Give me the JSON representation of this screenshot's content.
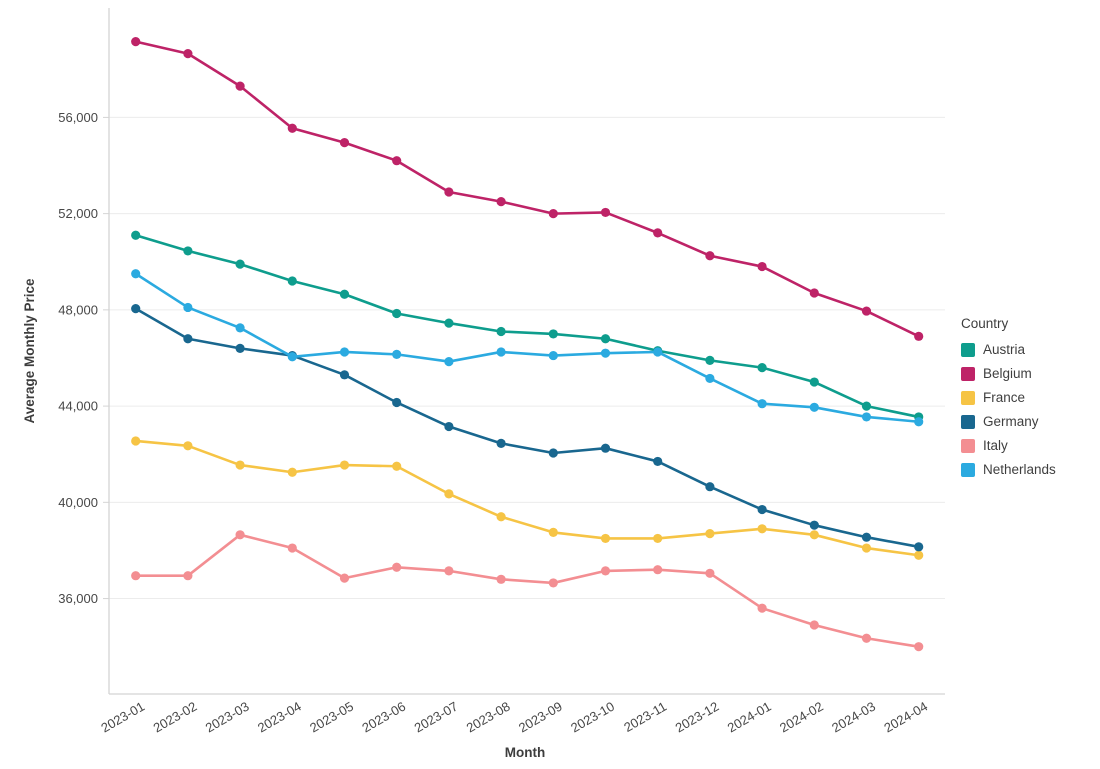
{
  "chart_data": {
    "type": "line",
    "title": "",
    "xlabel": "Month",
    "ylabel": "Average Monthly Price",
    "legend_title": "Country",
    "legend_position": "right",
    "grid": "horizontal",
    "background": "#ffffff",
    "gridline_color": "#ececec",
    "axis_line_color": "#d4d4d4",
    "tick_label_color": "#474747",
    "x": [
      "2023-01",
      "2023-02",
      "2023-03",
      "2023-04",
      "2023-05",
      "2023-06",
      "2023-07",
      "2023-08",
      "2023-09",
      "2023-10",
      "2023-11",
      "2023-12",
      "2024-01",
      "2024-02",
      "2024-03",
      "2024-04"
    ],
    "x_label_angle_deg": -30,
    "yticks": [
      36000,
      40000,
      44000,
      48000,
      52000,
      56000
    ],
    "ylim": [
      32000,
      60600
    ],
    "series": [
      {
        "name": "Austria",
        "color": "#0e9d8d",
        "values": [
          51100,
          50450,
          49900,
          49200,
          48650,
          47850,
          47450,
          47100,
          47000,
          46800,
          46300,
          45900,
          45600,
          45000,
          44000,
          43550
        ]
      },
      {
        "name": "Belgium",
        "color": "#be2367",
        "values": [
          59150,
          58650,
          57300,
          55550,
          54950,
          54200,
          52900,
          52500,
          52000,
          52050,
          51200,
          50250,
          49800,
          48700,
          47950,
          46900
        ]
      },
      {
        "name": "France",
        "color": "#f6c445",
        "values": [
          42550,
          42350,
          41550,
          41250,
          41550,
          41500,
          40350,
          39400,
          38750,
          38500,
          38500,
          38700,
          38900,
          38650,
          38100,
          37800
        ]
      },
      {
        "name": "Germany",
        "color": "#19678f",
        "values": [
          48050,
          46800,
          46400,
          46100,
          45300,
          44150,
          43150,
          42450,
          42050,
          42250,
          41700,
          40650,
          39700,
          39050,
          38550,
          38150
        ]
      },
      {
        "name": "Italy",
        "color": "#f38e92",
        "values": [
          36950,
          36950,
          38650,
          38100,
          36850,
          37300,
          37150,
          36800,
          36650,
          37150,
          37200,
          37050,
          35600,
          34900,
          34350,
          34000
        ]
      },
      {
        "name": "Netherlands",
        "color": "#2baae0",
        "values": [
          49500,
          48100,
          47250,
          46050,
          46250,
          46150,
          45850,
          46250,
          46100,
          46200,
          46250,
          45150,
          44100,
          43950,
          43550,
          43350
        ]
      }
    ]
  }
}
